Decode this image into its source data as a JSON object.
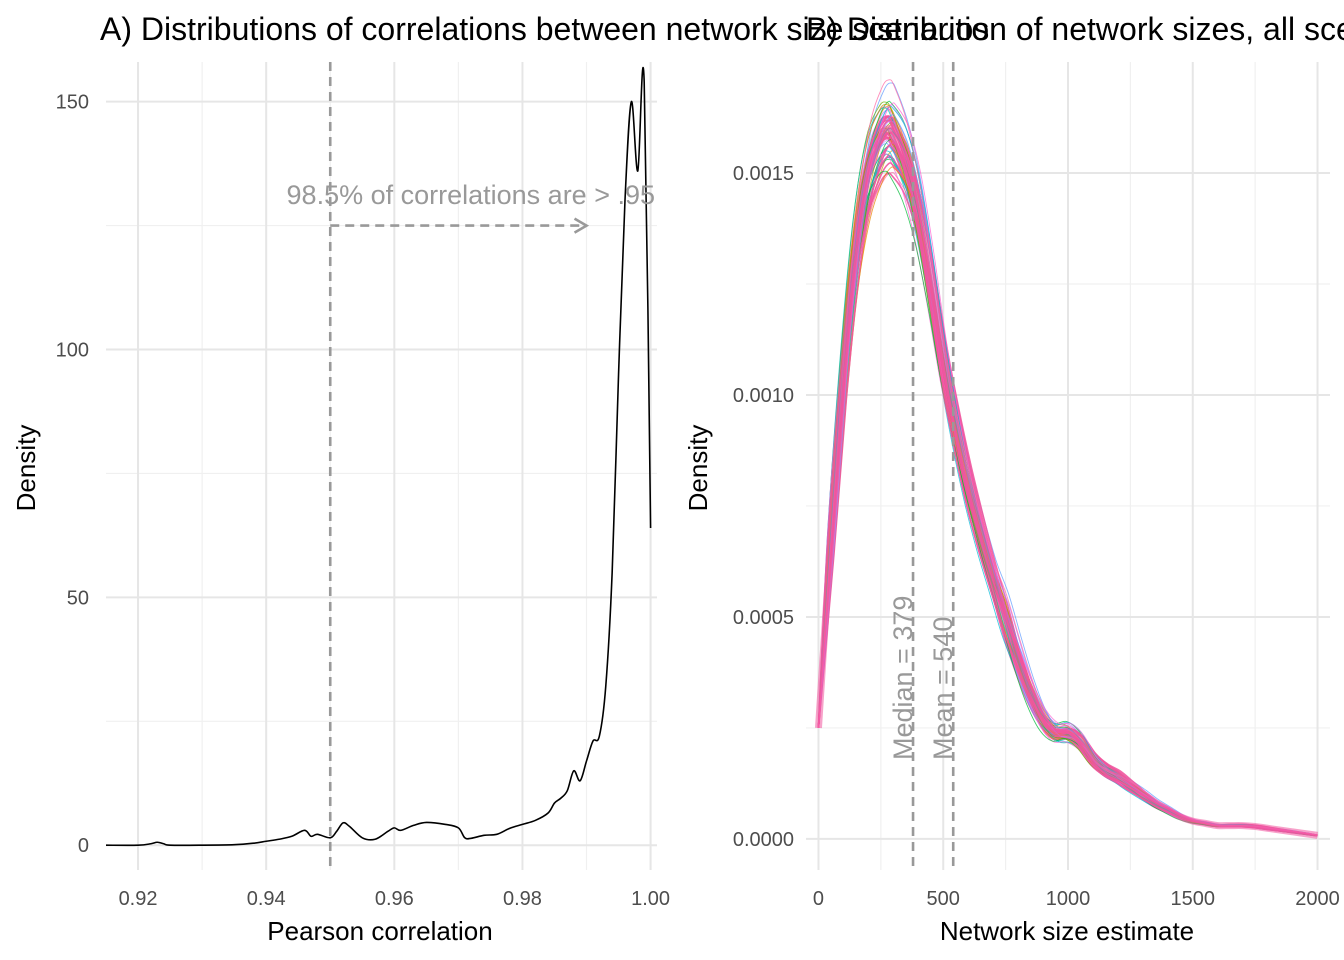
{
  "chart_data": [
    {
      "panel": "A",
      "type": "line",
      "title": "A) Distributions of correlations between network size scenarios",
      "xlabel": "Pearson correlation",
      "ylabel": "Density",
      "xlim": [
        0.915,
        1.001
      ],
      "ylim": [
        -5,
        158
      ],
      "xticks": [
        0.92,
        0.94,
        0.96,
        0.98,
        1.0
      ],
      "xtick_labels": [
        "0.92",
        "0.94",
        "0.96",
        "0.98",
        "1.00"
      ],
      "yticks": [
        0,
        50,
        100,
        150
      ],
      "ytick_labels": [
        "0",
        "50",
        "100",
        "150"
      ],
      "grid": true,
      "series": [
        {
          "color": "#000000",
          "x": [
            0.915,
            0.92,
            0.922,
            0.923,
            0.924,
            0.925,
            0.93,
            0.935,
            0.938,
            0.94,
            0.942,
            0.944,
            0.946,
            0.947,
            0.948,
            0.95,
            0.951,
            0.952,
            0.953,
            0.955,
            0.957,
            0.959,
            0.96,
            0.961,
            0.963,
            0.965,
            0.968,
            0.97,
            0.971,
            0.972,
            0.974,
            0.976,
            0.978,
            0.98,
            0.982,
            0.984,
            0.985,
            0.986,
            0.987,
            0.988,
            0.989,
            0.99,
            0.991,
            0.992,
            0.993,
            0.994,
            0.995,
            0.996,
            0.997,
            0.998,
            0.999,
            1.0
          ],
          "y": [
            0,
            0,
            0.3,
            0.6,
            0.3,
            0,
            0,
            0.1,
            0.4,
            0.8,
            1.2,
            1.8,
            3,
            1.8,
            2.2,
            1.5,
            2.8,
            4.5,
            3.8,
            1.5,
            1.2,
            2.8,
            3.5,
            3,
            4,
            4.6,
            4.2,
            3.5,
            1.5,
            1.4,
            2,
            2.2,
            3.4,
            4.2,
            5,
            6.5,
            8.5,
            9.5,
            11,
            15,
            13,
            17,
            21,
            22,
            32,
            55,
            95,
            130,
            150,
            136,
            154,
            64
          ]
        }
      ],
      "annotations": {
        "text": "98.5% of correlations are > .95",
        "vline_x": 0.95,
        "arrow": {
          "from": [
            0.95,
            125
          ],
          "to": [
            0.99,
            125
          ]
        }
      }
    },
    {
      "panel": "B",
      "type": "line",
      "title": "B) Distribution of network sizes, all scenarios",
      "xlabel": "Network size estimate",
      "ylabel": "Density",
      "xlim": [
        -50,
        2050
      ],
      "ylim": [
        -7e-05,
        0.00175
      ],
      "xticks": [
        0,
        500,
        1000,
        1500,
        2000
      ],
      "xtick_labels": [
        "0",
        "500",
        "1000",
        "1500",
        "2000"
      ],
      "yticks": [
        0,
        0.0005,
        0.001,
        0.0015
      ],
      "ytick_labels": [
        "0.0000",
        "0.0005",
        "0.0010",
        "0.0015"
      ],
      "grid": true,
      "base_curve": {
        "x": [
          0,
          50,
          100,
          150,
          200,
          250,
          280,
          300,
          350,
          400,
          450,
          500,
          550,
          600,
          650,
          700,
          750,
          800,
          850,
          900,
          950,
          1000,
          1050,
          1100,
          1150,
          1200,
          1250,
          1300,
          1350,
          1400,
          1450,
          1500,
          1550,
          1600,
          1650,
          1700,
          1750,
          1800,
          1850,
          1900,
          1950,
          2000
        ],
        "y": [
          0.00025,
          0.00068,
          0.00105,
          0.00133,
          0.0015,
          0.00158,
          0.0016,
          0.00159,
          0.00153,
          0.00142,
          0.00126,
          0.00108,
          0.00093,
          0.0008,
          0.00069,
          0.00059,
          0.0005,
          0.00041,
          0.00033,
          0.00027,
          0.00024,
          0.00024,
          0.00022,
          0.00018,
          0.000155,
          0.00014,
          0.00012,
          0.0001,
          8e-05,
          6.5e-05,
          5e-05,
          4e-05,
          3.5e-05,
          3e-05,
          3e-05,
          3e-05,
          2.8e-05,
          2.4e-05,
          2e-05,
          1.6e-05,
          1.2e-05,
          8e-06
        ]
      },
      "scenario_count": 60,
      "palette": [
        "#F8766D",
        "#E58700",
        "#C99800",
        "#A3A500",
        "#6BB100",
        "#00BA38",
        "#00BF7D",
        "#00C0AF",
        "#00BCD8",
        "#00B0F6",
        "#619CFF",
        "#B983FF",
        "#E76BF3",
        "#FD61D1",
        "#FF67A4"
      ],
      "highlight_color": "#F0569F",
      "reference_lines": [
        {
          "x": 379,
          "label": "Median = 379"
        },
        {
          "x": 540,
          "label": "Mean = 540"
        }
      ]
    }
  ]
}
